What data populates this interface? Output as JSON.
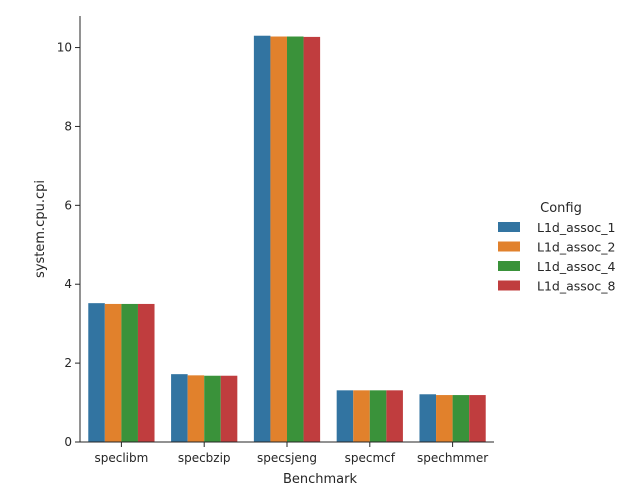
{
  "chart_data": {
    "type": "bar",
    "xlabel": "Benchmark",
    "ylabel": "system.cpu.cpi",
    "categories": [
      "speclibm",
      "specbzip",
      "specsjeng",
      "specmcf",
      "spechmmer"
    ],
    "ylim": [
      0,
      10.8
    ],
    "yticks": [
      0,
      2,
      4,
      6,
      8,
      10
    ],
    "grid": false,
    "legend": {
      "title": "Config",
      "placement": "center-right"
    },
    "series": [
      {
        "name": "L1d_assoc_1",
        "color": "#3274a1",
        "values": [
          3.52,
          1.72,
          10.3,
          1.31,
          1.21
        ]
      },
      {
        "name": "L1d_assoc_2",
        "color": "#e1812c",
        "values": [
          3.5,
          1.69,
          10.28,
          1.31,
          1.19
        ]
      },
      {
        "name": "L1d_assoc_4",
        "color": "#3a923a",
        "values": [
          3.5,
          1.68,
          10.28,
          1.31,
          1.19
        ]
      },
      {
        "name": "L1d_assoc_8",
        "color": "#c03d3e",
        "values": [
          3.5,
          1.68,
          10.27,
          1.31,
          1.19
        ]
      }
    ]
  }
}
